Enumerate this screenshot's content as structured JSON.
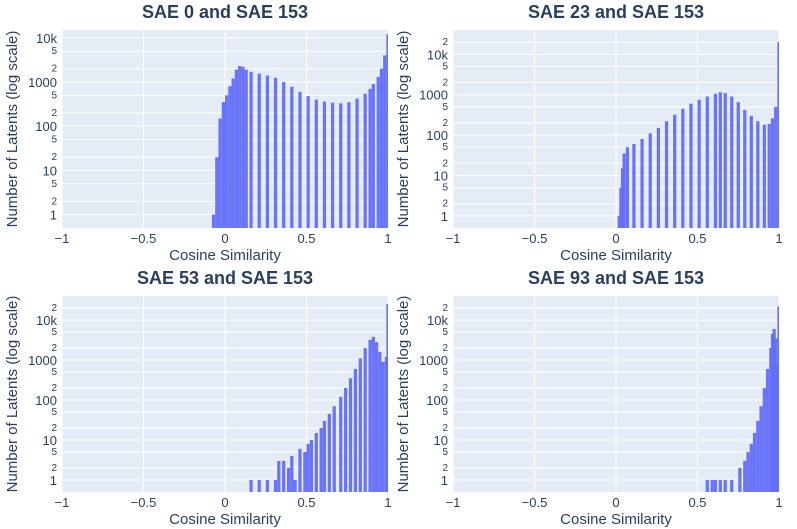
{
  "colors": {
    "background": "#e5ecf6",
    "bar": "#636efa",
    "text": "#2a3f5f",
    "grid": "#ffffff"
  },
  "chart_data": [
    {
      "type": "bar",
      "title": "SAE 0 and SAE 153",
      "xlabel": "Cosine Similarity",
      "ylabel": "Number of Latents (log scale)",
      "log_y": true,
      "xlim": [
        -1,
        1
      ],
      "ylim": [
        0.5,
        15000
      ],
      "x_ticks": [
        "−1",
        "−0.5",
        "0",
        "0.5",
        "1"
      ],
      "y_ticks": [
        "1",
        "2",
        "5",
        "10",
        "2",
        "5",
        "100",
        "2",
        "5",
        "1000",
        "2",
        "5",
        "10k"
      ],
      "bars": [
        [
          -0.08,
          1
        ],
        [
          -0.06,
          20
        ],
        [
          -0.04,
          150
        ],
        [
          -0.02,
          350
        ],
        [
          0,
          500
        ],
        [
          0.02,
          800
        ],
        [
          0.04,
          1200
        ],
        [
          0.06,
          1900
        ],
        [
          0.08,
          2300
        ],
        [
          0.1,
          2200
        ],
        [
          0.12,
          1900
        ],
        [
          0.15,
          1700
        ],
        [
          0.2,
          1550
        ],
        [
          0.25,
          1400
        ],
        [
          0.3,
          1250
        ],
        [
          0.35,
          1000
        ],
        [
          0.4,
          780
        ],
        [
          0.45,
          600
        ],
        [
          0.5,
          480
        ],
        [
          0.55,
          400
        ],
        [
          0.6,
          360
        ],
        [
          0.65,
          340
        ],
        [
          0.7,
          330
        ],
        [
          0.75,
          350
        ],
        [
          0.8,
          420
        ],
        [
          0.85,
          540
        ],
        [
          0.88,
          700
        ],
        [
          0.9,
          900
        ],
        [
          0.93,
          1300
        ],
        [
          0.95,
          2000
        ],
        [
          0.97,
          4000
        ],
        [
          0.99,
          12000
        ]
      ]
    },
    {
      "type": "bar",
      "title": "SAE 23 and SAE 153",
      "xlabel": "Cosine Similarity",
      "ylabel": "Number of Latents (log scale)",
      "log_y": true,
      "xlim": [
        -1,
        1
      ],
      "ylim": [
        0.5,
        40000
      ],
      "x_ticks": [
        "−1",
        "−0.5",
        "0",
        "0.5",
        "1"
      ],
      "y_ticks": [
        "1",
        "2",
        "5",
        "10",
        "2",
        "5",
        "100",
        "2",
        "5",
        "1000",
        "2",
        "5",
        "10k",
        "2"
      ],
      "bars": [
        [
          0.01,
          1
        ],
        [
          0.02,
          5
        ],
        [
          0.03,
          15
        ],
        [
          0.04,
          35
        ],
        [
          0.06,
          50
        ],
        [
          0.1,
          60
        ],
        [
          0.15,
          80
        ],
        [
          0.2,
          110
        ],
        [
          0.25,
          150
        ],
        [
          0.3,
          220
        ],
        [
          0.35,
          320
        ],
        [
          0.4,
          450
        ],
        [
          0.45,
          600
        ],
        [
          0.5,
          750
        ],
        [
          0.55,
          900
        ],
        [
          0.6,
          1050
        ],
        [
          0.63,
          1150
        ],
        [
          0.66,
          1100
        ],
        [
          0.7,
          900
        ],
        [
          0.74,
          650
        ],
        [
          0.78,
          420
        ],
        [
          0.82,
          300
        ],
        [
          0.86,
          220
        ],
        [
          0.9,
          180
        ],
        [
          0.93,
          190
        ],
        [
          0.95,
          260
        ],
        [
          0.97,
          500
        ],
        [
          0.99,
          20000
        ]
      ]
    },
    {
      "type": "bar",
      "title": "SAE 53 and SAE 153",
      "xlabel": "Cosine Similarity",
      "ylabel": "Number of Latents (log scale)",
      "log_y": true,
      "xlim": [
        -1,
        1
      ],
      "ylim": [
        0.5,
        40000
      ],
      "x_ticks": [
        "−1",
        "−0.5",
        "0",
        "0.5",
        "1"
      ],
      "y_ticks": [
        "1",
        "2",
        "5",
        "10",
        "2",
        "5",
        "100",
        "2",
        "5",
        "1000",
        "2",
        "5",
        "10k",
        "2"
      ],
      "bars": [
        [
          0.15,
          1
        ],
        [
          0.2,
          1
        ],
        [
          0.25,
          1
        ],
        [
          0.3,
          1
        ],
        [
          0.32,
          3
        ],
        [
          0.35,
          3
        ],
        [
          0.38,
          2
        ],
        [
          0.4,
          4
        ],
        [
          0.42,
          1
        ],
        [
          0.45,
          6
        ],
        [
          0.48,
          5
        ],
        [
          0.5,
          8
        ],
        [
          0.52,
          10
        ],
        [
          0.55,
          15
        ],
        [
          0.58,
          20
        ],
        [
          0.6,
          30
        ],
        [
          0.63,
          45
        ],
        [
          0.66,
          70
        ],
        [
          0.7,
          120
        ],
        [
          0.73,
          200
        ],
        [
          0.76,
          350
        ],
        [
          0.79,
          600
        ],
        [
          0.82,
          1100
        ],
        [
          0.85,
          2000
        ],
        [
          0.88,
          3200
        ],
        [
          0.9,
          3800
        ],
        [
          0.92,
          2800
        ],
        [
          0.94,
          1600
        ],
        [
          0.96,
          900
        ],
        [
          0.98,
          1200
        ],
        [
          0.99,
          25000
        ]
      ]
    },
    {
      "type": "bar",
      "title": "SAE 93 and SAE 153",
      "xlabel": "Cosine Similarity",
      "ylabel": "Number of Latents (log scale)",
      "log_y": true,
      "xlim": [
        -1,
        1
      ],
      "ylim": [
        0.5,
        40000
      ],
      "x_ticks": [
        "−1",
        "−0.5",
        "0",
        "0.5",
        "1"
      ],
      "y_ticks": [
        "1",
        "2",
        "5",
        "10",
        "2",
        "5",
        "100",
        "2",
        "5",
        "1000",
        "2",
        "5",
        "10k",
        "2"
      ],
      "bars": [
        [
          0.55,
          1
        ],
        [
          0.58,
          1
        ],
        [
          0.6,
          1
        ],
        [
          0.63,
          1
        ],
        [
          0.66,
          1
        ],
        [
          0.7,
          1
        ],
        [
          0.75,
          2
        ],
        [
          0.78,
          3
        ],
        [
          0.8,
          5
        ],
        [
          0.82,
          8
        ],
        [
          0.84,
          15
        ],
        [
          0.86,
          30
        ],
        [
          0.88,
          70
        ],
        [
          0.9,
          200
        ],
        [
          0.92,
          600
        ],
        [
          0.94,
          2000
        ],
        [
          0.95,
          4500
        ],
        [
          0.96,
          6000
        ],
        [
          0.97,
          3500
        ],
        [
          0.98,
          800
        ],
        [
          0.99,
          22000
        ]
      ]
    }
  ]
}
